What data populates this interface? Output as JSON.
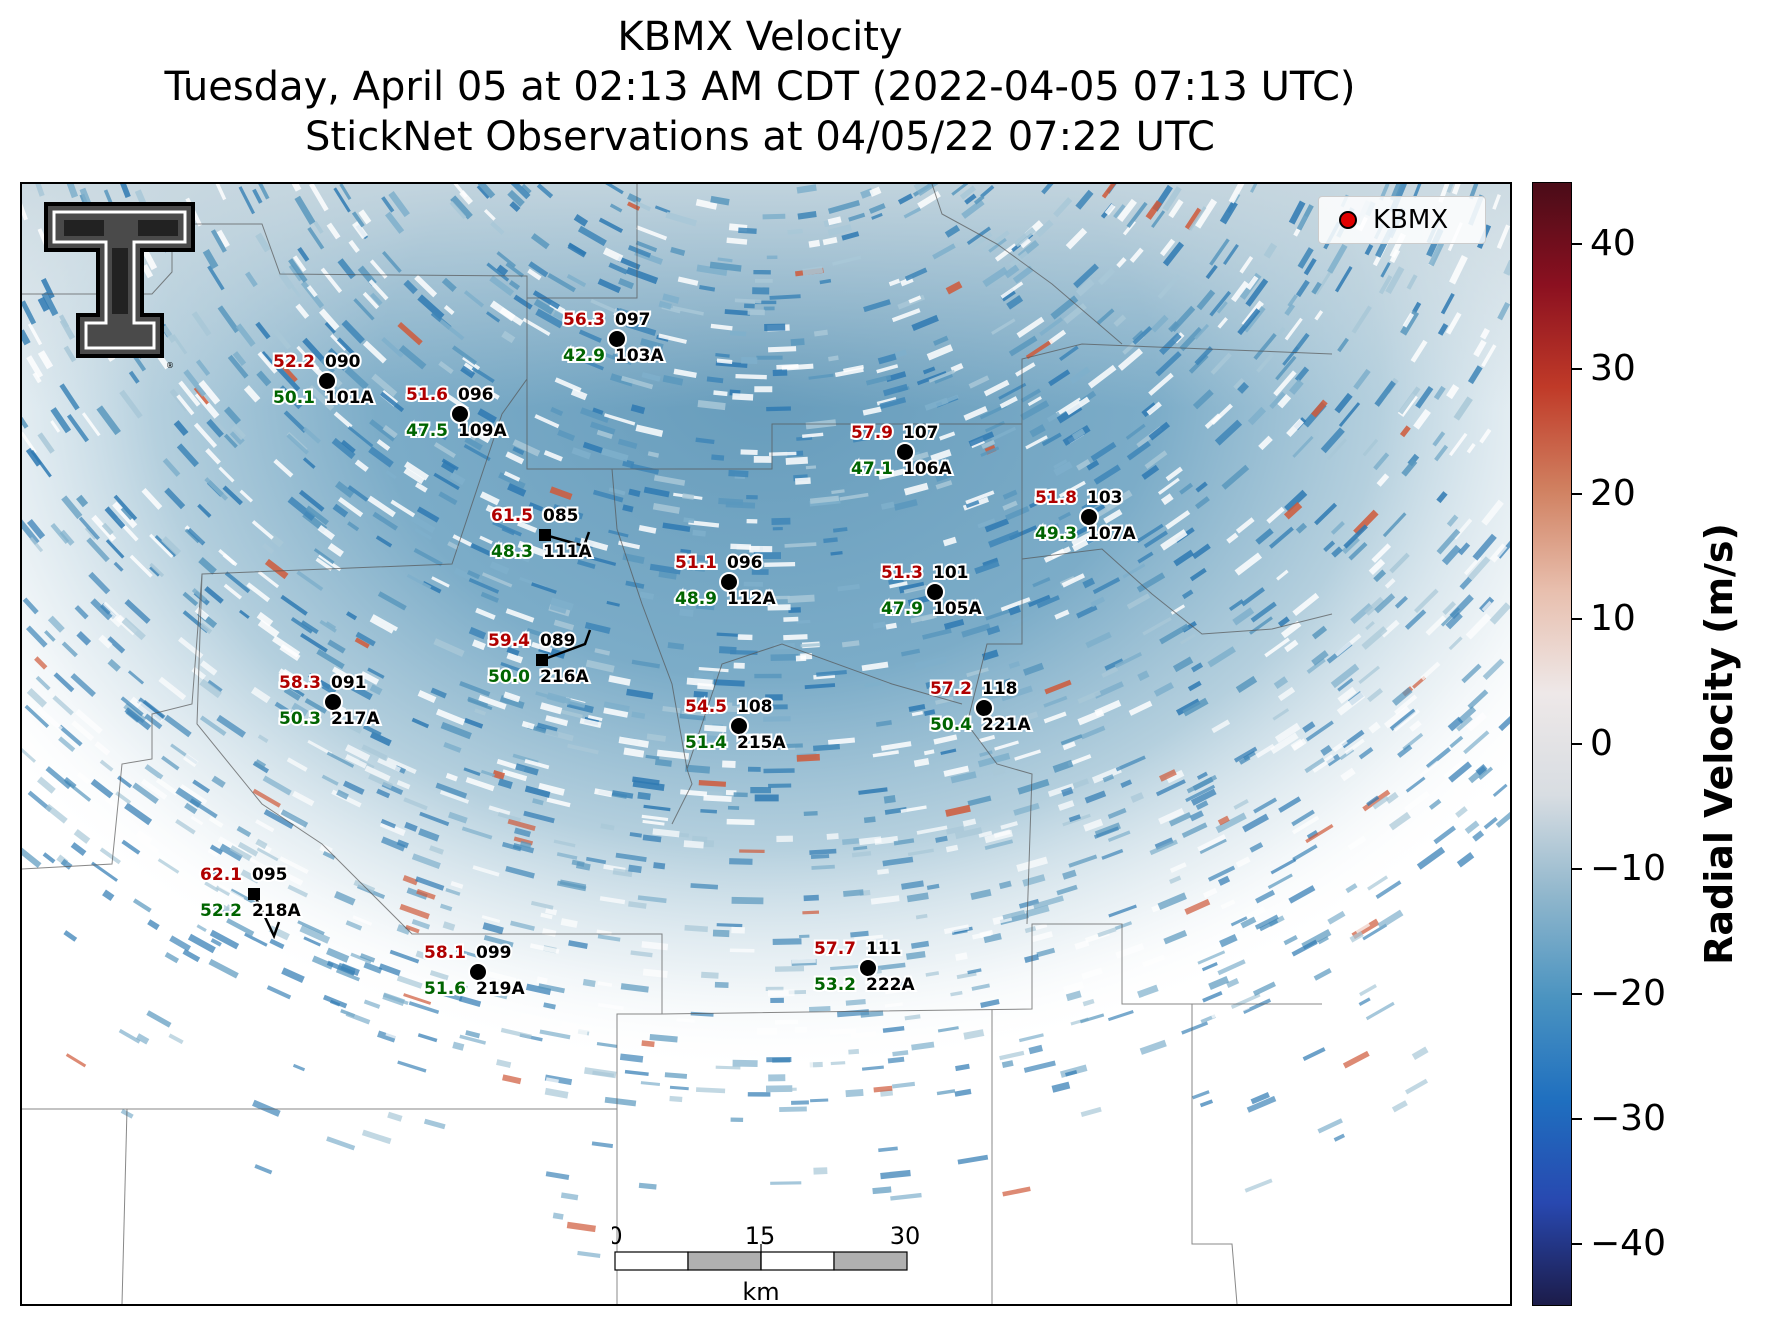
{
  "title": {
    "line1": "KBMX Velocity",
    "line2": "Tuesday, April 05 at 02:13 AM CDT (2022-04-05 07:13 UTC)",
    "line3": "StickNet Observations at 04/05/22 07:22 UTC"
  },
  "legend": {
    "label": "KBMX",
    "marker_color": "#e00000"
  },
  "colorbar": {
    "label": "Radial Velocity (m/s)",
    "range": [
      -45,
      45
    ],
    "ticks": [
      "40",
      "30",
      "20",
      "10",
      "0",
      "−10",
      "−20",
      "−30",
      "−40"
    ],
    "tick_values": [
      40,
      30,
      20,
      10,
      0,
      -10,
      -20,
      -30,
      -40
    ],
    "colors": [
      "#1c1c4a",
      "#2848b0",
      "#1f6fbf",
      "#4a93c0",
      "#8fb6cc",
      "#d8dde2",
      "#eee8e8",
      "#e8bfae",
      "#d08060",
      "#c03a28",
      "#8b1020",
      "#4a0c18"
    ]
  },
  "scale_bar": {
    "labels": [
      "0",
      "15",
      "30"
    ],
    "unit": "km"
  },
  "stations": [
    {
      "id": "097",
      "probe": "103A",
      "speed": "56.3",
      "temp": "42.9",
      "marker": "circle"
    },
    {
      "id": "090",
      "probe": "101A",
      "speed": "52.2",
      "temp": "50.1",
      "marker": "circle"
    },
    {
      "id": "096",
      "probe": "109A",
      "speed": "51.6",
      "temp": "47.5",
      "marker": "circle"
    },
    {
      "id": "107",
      "probe": "106A",
      "speed": "57.9",
      "temp": "47.1",
      "marker": "circle"
    },
    {
      "id": "103",
      "probe": "107A",
      "speed": "51.8",
      "temp": "49.3",
      "marker": "circle"
    },
    {
      "id": "085",
      "probe": "111A",
      "speed": "61.5",
      "temp": "48.3",
      "marker": "square"
    },
    {
      "id": "096",
      "probe": "112A",
      "speed": "51.1",
      "temp": "48.9",
      "marker": "circle"
    },
    {
      "id": "101",
      "probe": "105A",
      "speed": "51.3",
      "temp": "47.9",
      "marker": "circle"
    },
    {
      "id": "089",
      "probe": "216A",
      "speed": "59.4",
      "temp": "50.0",
      "marker": "square"
    },
    {
      "id": "091",
      "probe": "217A",
      "speed": "58.3",
      "temp": "50.3",
      "marker": "circle"
    },
    {
      "id": "108",
      "probe": "215A",
      "speed": "54.5",
      "temp": "51.4",
      "marker": "circle"
    },
    {
      "id": "118",
      "probe": "221A",
      "speed": "57.2",
      "temp": "50.4",
      "marker": "circle"
    },
    {
      "id": "095",
      "probe": "218A",
      "speed": "62.1",
      "temp": "52.2",
      "marker": "square"
    },
    {
      "id": "099",
      "probe": "219A",
      "speed": "58.1",
      "temp": "51.6",
      "marker": "circle"
    },
    {
      "id": "111",
      "probe": "222A",
      "speed": "57.7",
      "temp": "53.2",
      "marker": "circle"
    }
  ]
}
